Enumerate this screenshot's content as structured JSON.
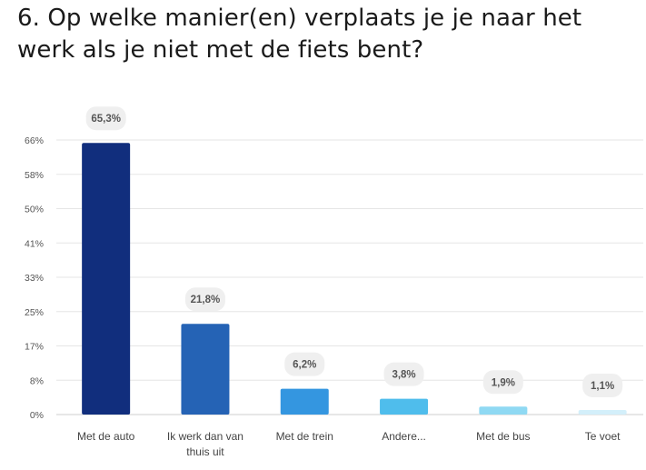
{
  "header": {
    "title": "6. Op welke manier(en) verplaats je je naar het werk als je niet met de fiets bent?"
  },
  "chart_data": {
    "type": "bar",
    "title": "6. Op welke manier(en) verplaats je je naar het werk als je niet met de fiets bent?",
    "xlabel": "",
    "ylabel": "",
    "categories": [
      [
        "Met de auto"
      ],
      [
        "Ik werk dan van",
        "thuis uit"
      ],
      [
        "Met de trein"
      ],
      [
        "Andere..."
      ],
      [
        "Met de bus"
      ],
      [
        "Te voet"
      ]
    ],
    "values": [
      65.3,
      21.8,
      6.2,
      3.8,
      1.9,
      1.1
    ],
    "value_labels": [
      "65,3%",
      "21,8%",
      "6,2%",
      "3,8%",
      "1,9%",
      "1,1%"
    ],
    "bar_colors": [
      "#112e7d",
      "#2563b5",
      "#3496e0",
      "#4fbdec",
      "#8fd9f3",
      "#d3effa"
    ],
    "yticks": [
      {
        "value": 0,
        "label": "0%"
      },
      {
        "value": 8.25,
        "label": "8%"
      },
      {
        "value": 16.5,
        "label": "17%"
      },
      {
        "value": 24.75,
        "label": "25%"
      },
      {
        "value": 33,
        "label": "33%"
      },
      {
        "value": 41.25,
        "label": "41%"
      },
      {
        "value": 49.5,
        "label": "50%"
      },
      {
        "value": 57.75,
        "label": "58%"
      },
      {
        "value": 66,
        "label": "66%"
      }
    ],
    "ylim": [
      0,
      66
    ],
    "grid": true,
    "legend": "none"
  }
}
